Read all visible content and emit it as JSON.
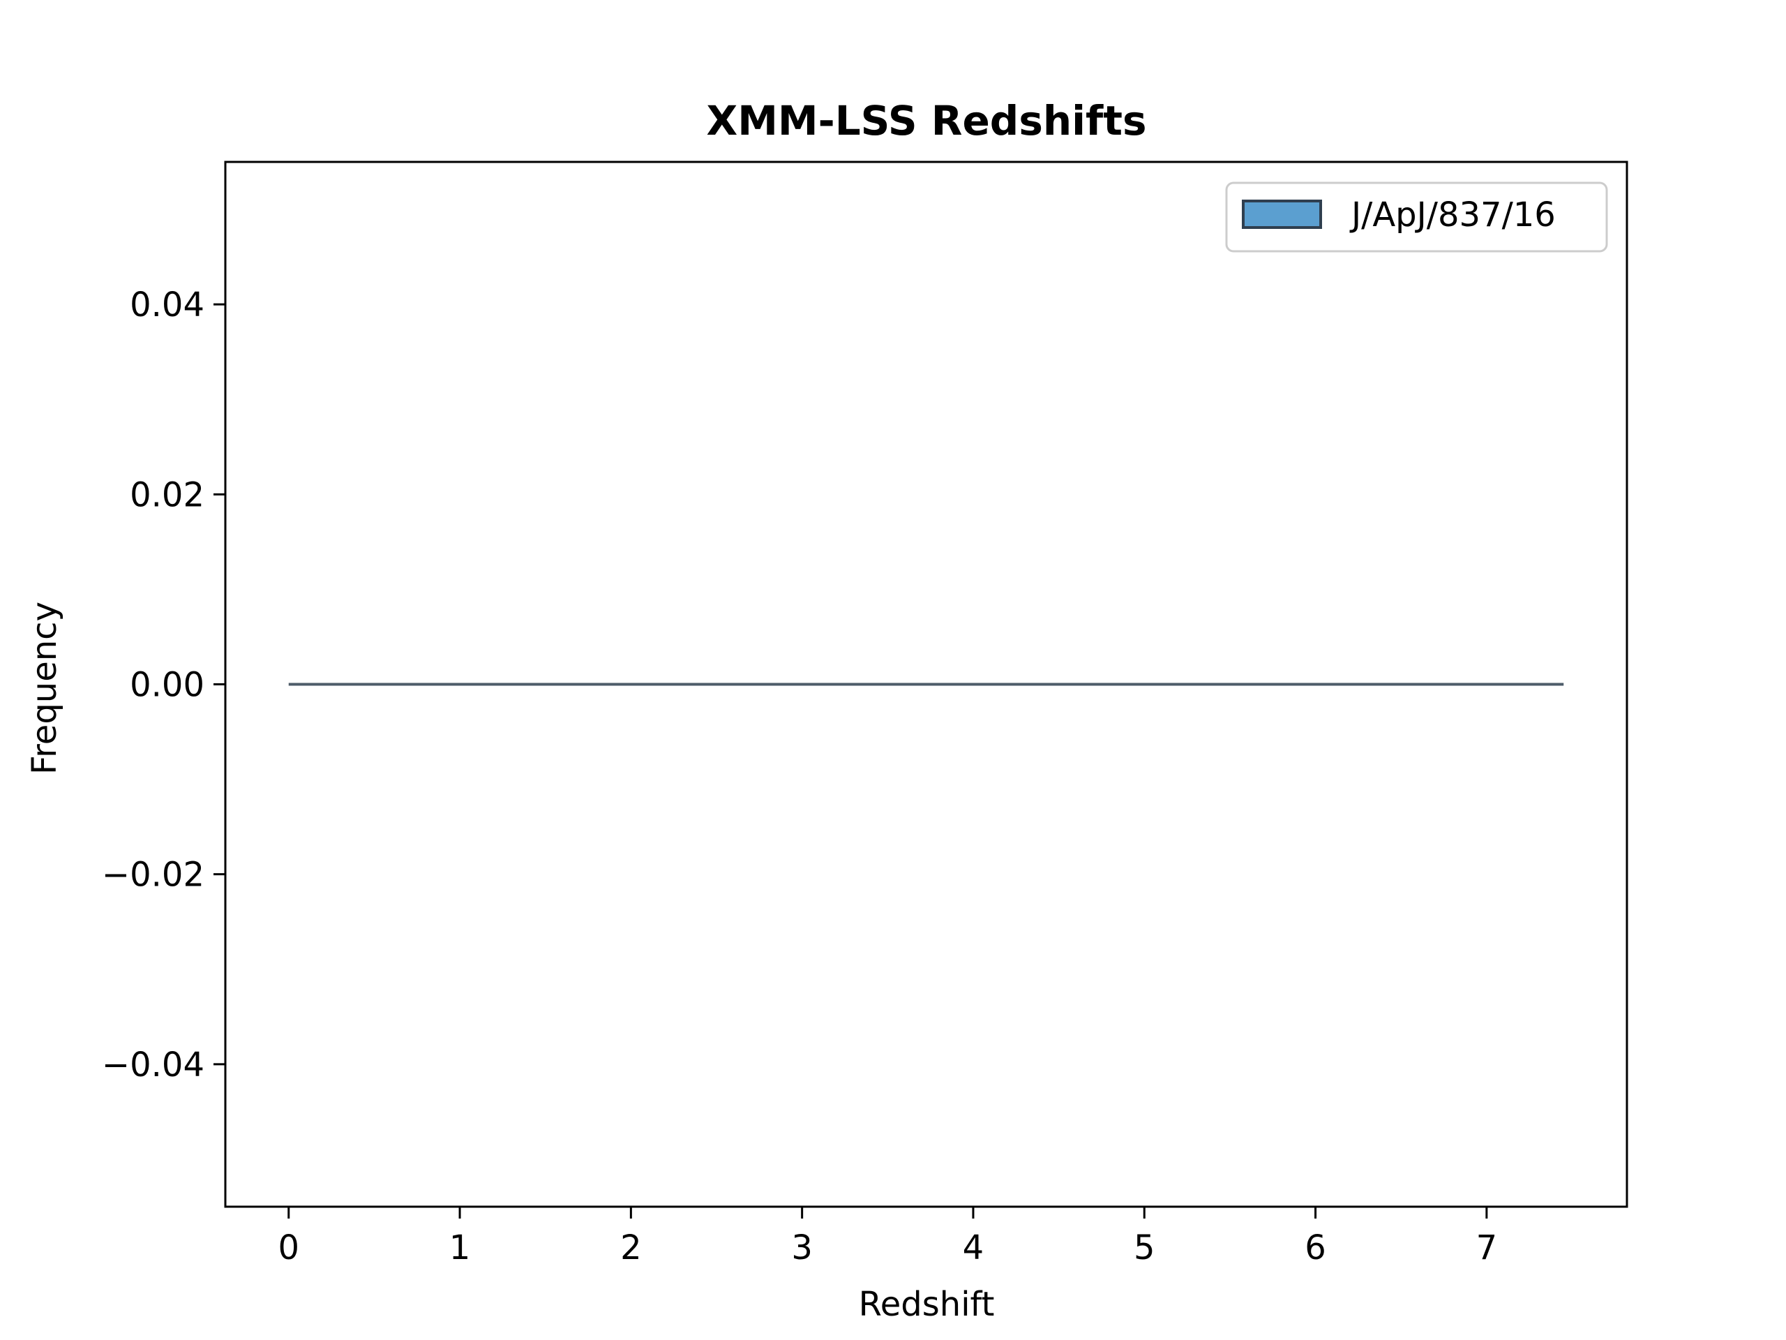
{
  "chart_data": {
    "type": "bar",
    "title": "XMM-LSS Redshifts",
    "xlabel": "Redshift",
    "ylabel": "Frequency",
    "xlim": [
      -0.37,
      7.82
    ],
    "ylim": [
      -0.055,
      0.055
    ],
    "x_ticks": [
      0,
      1,
      2,
      3,
      4,
      5,
      6,
      7
    ],
    "x_tick_labels": [
      "0",
      "1",
      "2",
      "3",
      "4",
      "5",
      "6",
      "7"
    ],
    "y_ticks": [
      -0.04,
      -0.02,
      0.0,
      0.02,
      0.04
    ],
    "y_tick_labels": [
      "−0.04",
      "−0.02",
      "0.00",
      "0.02",
      "0.04"
    ],
    "series": [
      {
        "name": "J/ApJ/837/16",
        "color": "#5b9fd0",
        "edge_color": "#2f3f4f",
        "bin_range": [
          0,
          7.45
        ],
        "values": [
          0
        ]
      }
    ],
    "grid": false,
    "legend_position": "top-right"
  }
}
